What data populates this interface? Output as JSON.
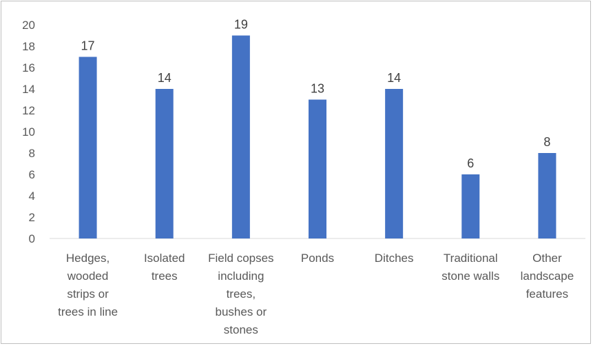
{
  "chart_data": {
    "type": "bar",
    "categories": [
      "Hedges, wooded strips or trees in line",
      "Isolated trees",
      "Field copses including trees, bushes or stones",
      "Ponds",
      "Ditches",
      "Traditional stone walls",
      "Other landscape features"
    ],
    "category_lines": [
      [
        "Hedges,",
        "wooded",
        "strips or",
        "trees in line"
      ],
      [
        "Isolated",
        "trees"
      ],
      [
        "Field copses",
        "including",
        "trees,",
        "bushes or",
        "stones"
      ],
      [
        "Ponds"
      ],
      [
        "Ditches"
      ],
      [
        "Traditional",
        "stone walls"
      ],
      [
        "Other",
        "landscape",
        "features"
      ]
    ],
    "values": [
      17,
      14,
      19,
      13,
      14,
      6,
      8
    ],
    "data_labels": [
      "17",
      "14",
      "19",
      "13",
      "14",
      "6",
      "8"
    ],
    "y_ticks": [
      "0",
      "2",
      "4",
      "6",
      "8",
      "10",
      "12",
      "14",
      "16",
      "18",
      "20"
    ],
    "ylim": [
      0,
      20
    ],
    "grid": false,
    "legend": "none",
    "bar_color": "#4472c4",
    "axis_color": "#d9d9d9"
  }
}
